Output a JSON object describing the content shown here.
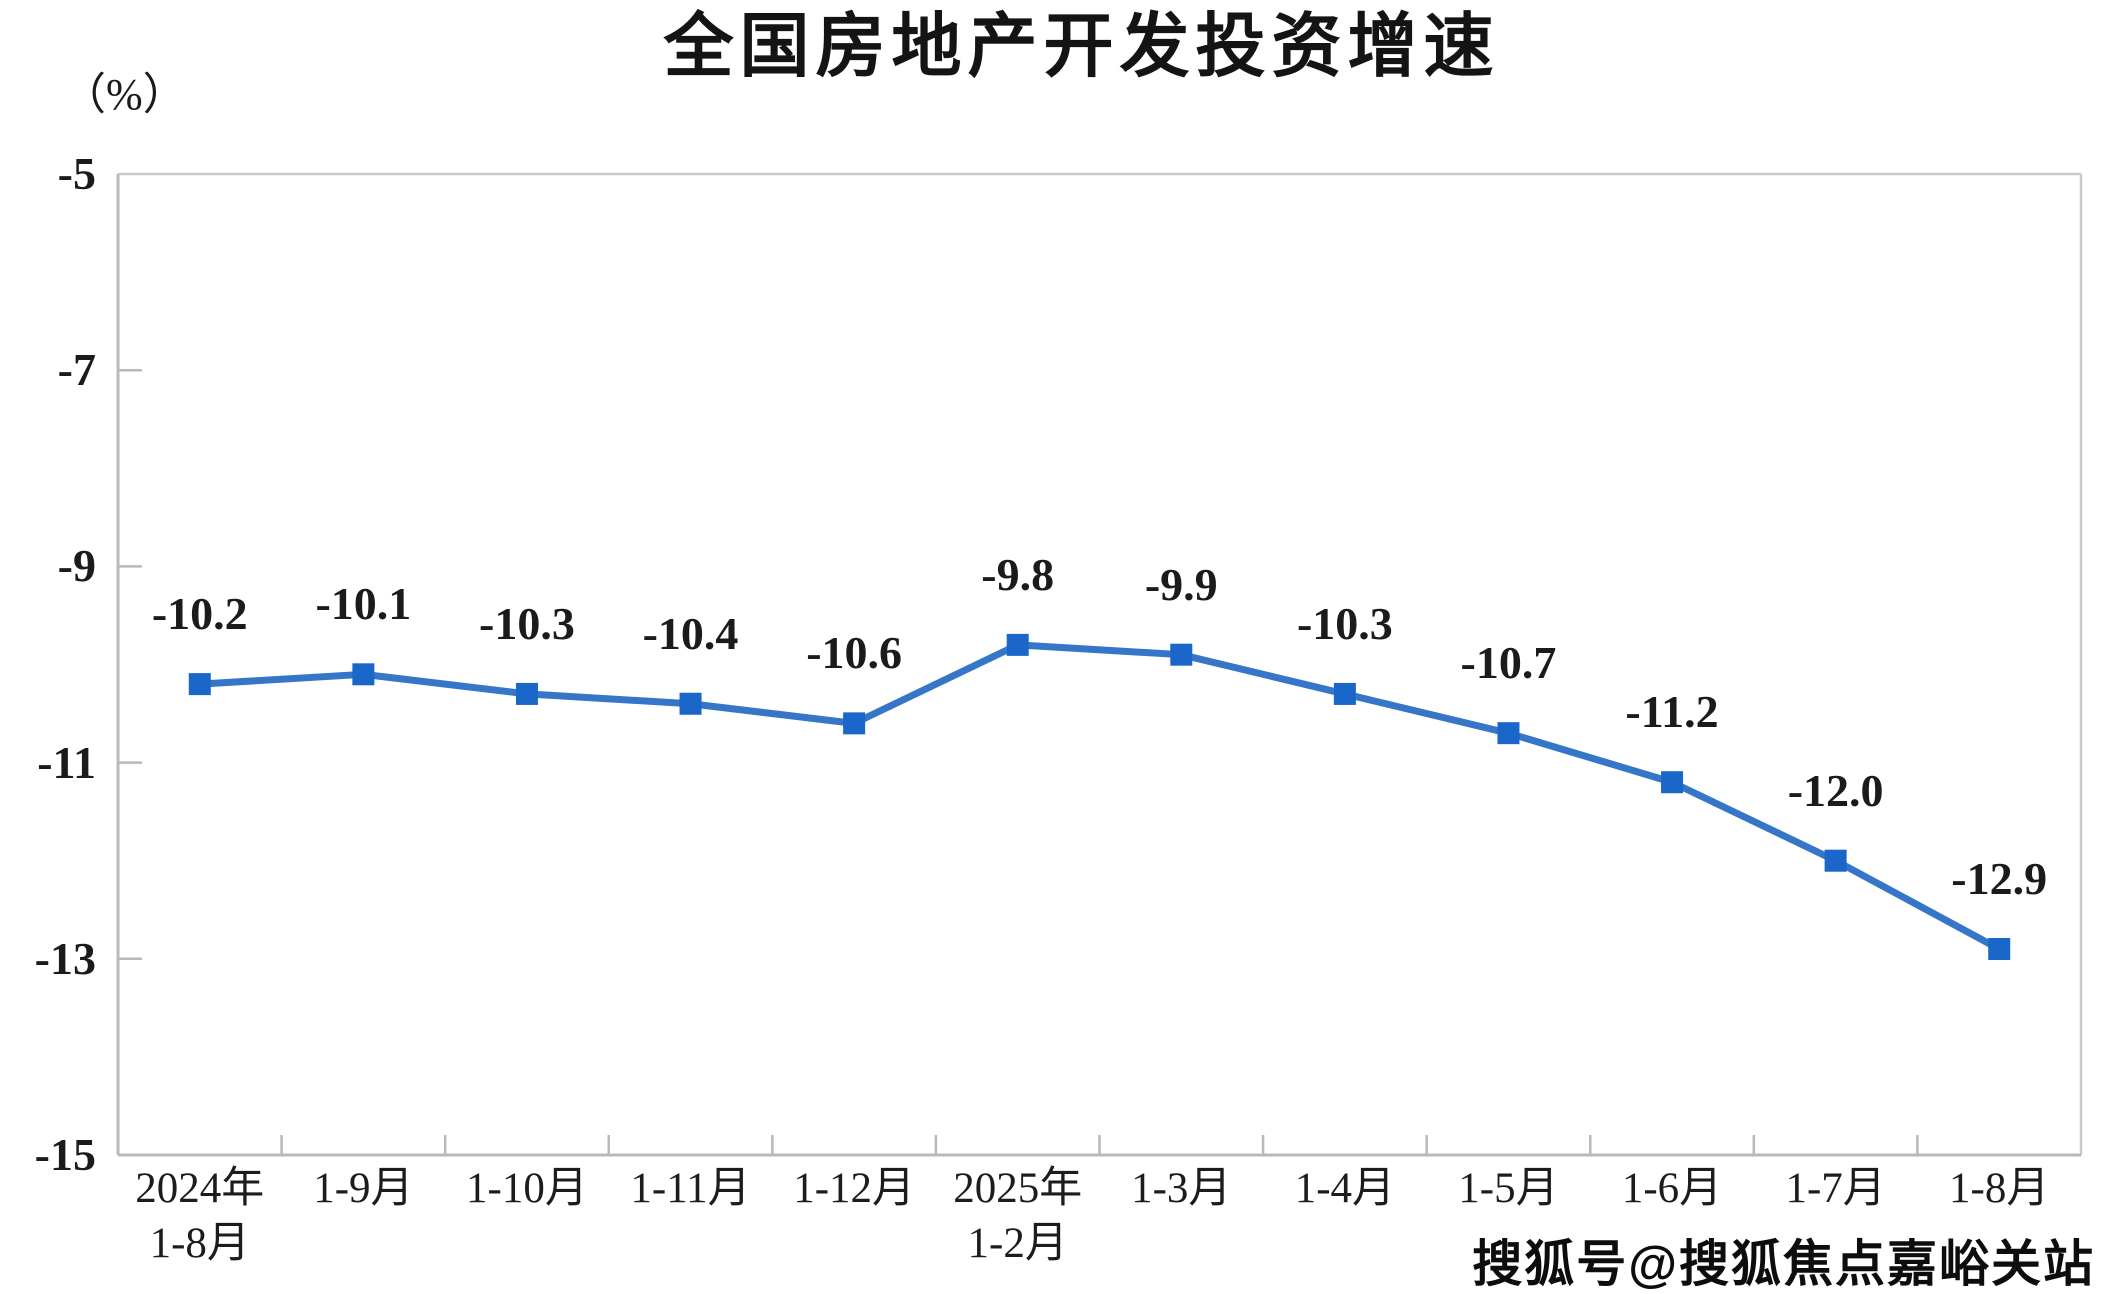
{
  "watermark": "搜狐号@搜狐焦点嘉峪关站",
  "chart_data": {
    "type": "line",
    "title": "全国房地产开发投资增速",
    "unit": "（%）",
    "series_name": "全国房地产开发投资增速",
    "categories": [
      [
        "2024年",
        "1-8月"
      ],
      [
        "1-9月"
      ],
      [
        "1-10月"
      ],
      [
        "1-11月"
      ],
      [
        "1-12月"
      ],
      [
        "2025年",
        "1-2月"
      ],
      [
        "1-3月"
      ],
      [
        "1-4月"
      ],
      [
        "1-5月"
      ],
      [
        "1-6月"
      ],
      [
        "1-7月"
      ],
      [
        "1-8月"
      ]
    ],
    "values": [
      -10.2,
      -10.1,
      -10.3,
      -10.4,
      -10.6,
      -9.8,
      -9.9,
      -10.3,
      -10.7,
      -11.2,
      -12.0,
      -12.9
    ],
    "data_labels": [
      "-10.2",
      "-10.1",
      "-10.3",
      "-10.4",
      "-10.6",
      "-9.8",
      "-9.9",
      "-10.3",
      "-10.7",
      "-11.2",
      "-12.0",
      "-12.9"
    ],
    "y_ticks": [
      -5,
      -7,
      -9,
      -11,
      -13,
      -15
    ],
    "y_tick_labels": [
      "-5",
      "-7",
      "-9",
      "-11",
      "-13",
      "-15"
    ],
    "ylim": [
      -15,
      -5
    ],
    "grid": false,
    "legend": "none",
    "marker_shape": "square",
    "colors": {
      "line": "#3576C9",
      "marker": "#1A67C9",
      "axis": "#B9B9B9",
      "border": "#C9C9C9",
      "text": "#1A1A1A"
    }
  }
}
